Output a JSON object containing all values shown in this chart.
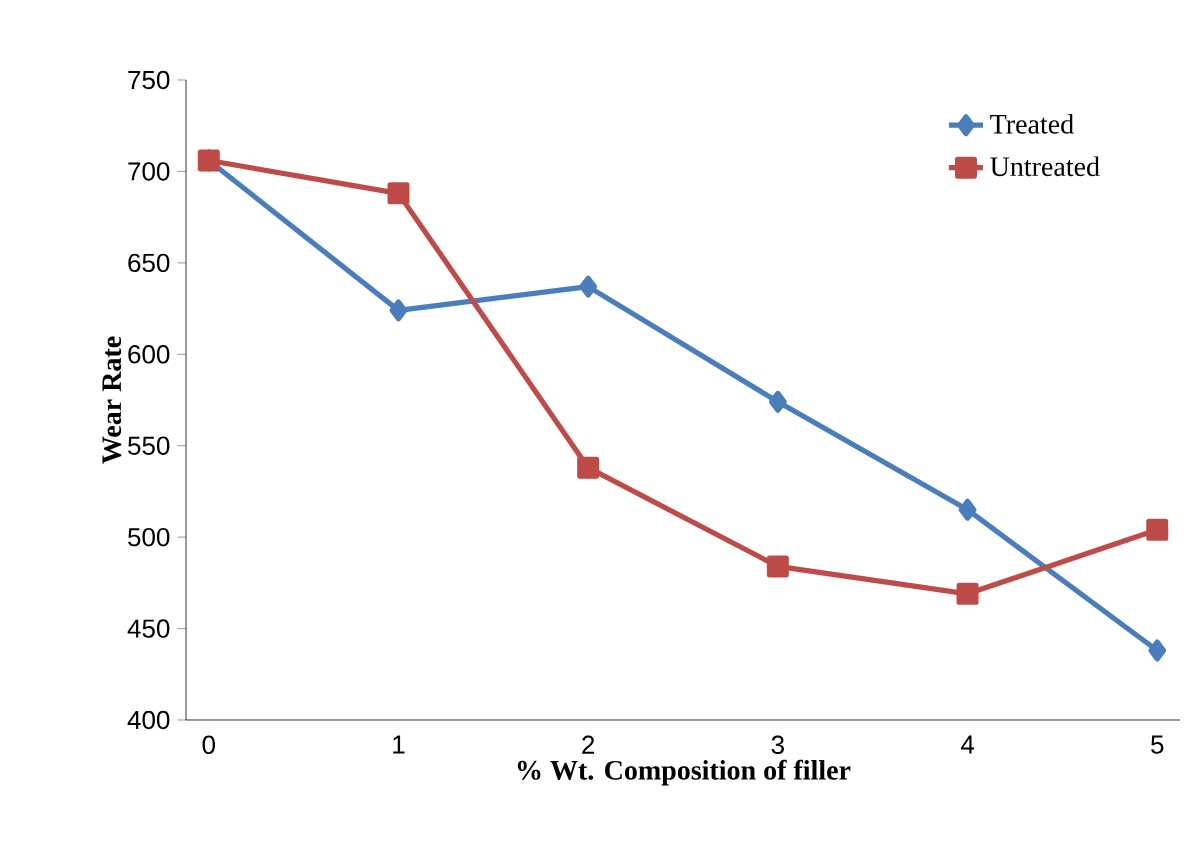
{
  "chart_data": {
    "type": "line",
    "xlabel": "% Wt. Composition of filler",
    "ylabel": "Wear Rate",
    "x": [
      0,
      1,
      2,
      3,
      4,
      5
    ],
    "series": [
      {
        "name": "Treated",
        "color": "#4a7ebb",
        "marker": "diamond",
        "values": [
          706,
          624,
          637,
          574,
          515,
          438
        ]
      },
      {
        "name": "Untreated",
        "color": "#be4b48",
        "marker": "square",
        "values": [
          706,
          688,
          538,
          484,
          469,
          504
        ]
      }
    ],
    "xlim": [
      -0.12,
      5.12
    ],
    "ylim": [
      400,
      750
    ],
    "xticks": [
      0,
      1,
      2,
      3,
      4,
      5
    ],
    "yticks": [
      400,
      450,
      500,
      550,
      600,
      650,
      700,
      750
    ],
    "legend": "top right",
    "grid": false,
    "line_style": "solid"
  }
}
